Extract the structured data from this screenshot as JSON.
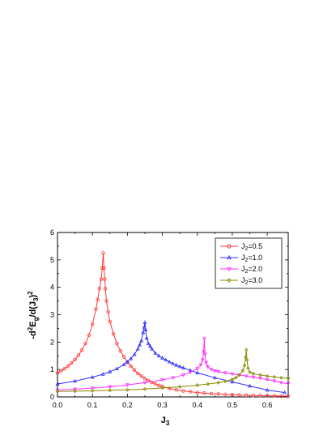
{
  "chart_data": {
    "type": "line",
    "xlabel": {
      "main": "J",
      "sub": "3"
    },
    "ylabel": {
      "p1": "-d",
      "sup1": "2",
      "p2": "E",
      "sub1": "g",
      "p3": "/d(J",
      "sub2": "3",
      "p4": ")",
      "sup2": "2"
    },
    "xlim": [
      0.0,
      0.66
    ],
    "ylim": [
      0,
      6
    ],
    "x_ticks": [
      "0.0",
      "0.1",
      "0.2",
      "0.3",
      "0.4",
      "0.5",
      "0.6"
    ],
    "y_ticks": [
      "0",
      "1",
      "2",
      "3",
      "4",
      "5",
      "6"
    ],
    "grid": false,
    "legend_position": "top-right",
    "series": [
      {
        "name": "J2=0.5",
        "label_main": "J",
        "label_sub": "2",
        "label_rest": "=0.5",
        "color": "#ff3b3b",
        "marker": "circle",
        "x": [
          0.0,
          0.01,
          0.02,
          0.03,
          0.04,
          0.05,
          0.06,
          0.07,
          0.08,
          0.09,
          0.1,
          0.11,
          0.115,
          0.12,
          0.125,
          0.128,
          0.131,
          0.133,
          0.135,
          0.137,
          0.14,
          0.145,
          0.15,
          0.16,
          0.17,
          0.18,
          0.19,
          0.2,
          0.21,
          0.22,
          0.23,
          0.24,
          0.25,
          0.26,
          0.27,
          0.28,
          0.29,
          0.3,
          0.32,
          0.34,
          0.36,
          0.38,
          0.4,
          0.42,
          0.44,
          0.46,
          0.48,
          0.5,
          0.52,
          0.54,
          0.56,
          0.58,
          0.6,
          0.62,
          0.64,
          0.66
        ],
        "y": [
          0.87,
          0.95,
          1.03,
          1.12,
          1.23,
          1.36,
          1.52,
          1.71,
          1.95,
          2.25,
          2.65,
          3.2,
          3.55,
          3.95,
          4.3,
          4.7,
          5.25,
          4.7,
          4.3,
          3.95,
          3.5,
          3.1,
          2.75,
          2.3,
          1.95,
          1.68,
          1.46,
          1.27,
          1.12,
          0.98,
          0.86,
          0.76,
          0.67,
          0.6,
          0.53,
          0.47,
          0.42,
          0.38,
          0.31,
          0.26,
          0.22,
          0.19,
          0.16,
          0.14,
          0.12,
          0.11,
          0.09,
          0.08,
          0.07,
          0.06,
          0.05,
          0.05,
          0.04,
          0.04,
          0.03,
          0.03
        ]
      },
      {
        "name": "J2=1.0",
        "label_main": "J",
        "label_sub": "2",
        "label_rest": "=1.0",
        "color": "#3030ff",
        "marker": "triangle-up",
        "x": [
          0.0,
          0.05,
          0.1,
          0.13,
          0.15,
          0.17,
          0.19,
          0.2,
          0.21,
          0.22,
          0.23,
          0.235,
          0.24,
          0.245,
          0.248,
          0.25,
          0.252,
          0.255,
          0.26,
          0.265,
          0.27,
          0.28,
          0.29,
          0.3,
          0.31,
          0.32,
          0.33,
          0.34,
          0.35,
          0.36,
          0.38,
          0.4,
          0.45,
          0.5,
          0.55,
          0.6,
          0.65
        ],
        "y": [
          0.47,
          0.58,
          0.72,
          0.83,
          0.92,
          1.03,
          1.18,
          1.28,
          1.4,
          1.55,
          1.75,
          1.9,
          2.05,
          2.35,
          2.55,
          2.72,
          2.45,
          2.15,
          1.95,
          1.85,
          1.75,
          1.6,
          1.5,
          1.42,
          1.35,
          1.28,
          1.22,
          1.16,
          1.11,
          1.06,
          0.97,
          0.88,
          0.7,
          0.55,
          0.4,
          0.25,
          0.16
        ]
      },
      {
        "name": "J2=2.0",
        "label_main": "J",
        "label_sub": "2",
        "label_rest": "=2.0",
        "color": "#ff30ff",
        "marker": "triangle-down",
        "x": [
          0.0,
          0.05,
          0.1,
          0.15,
          0.2,
          0.25,
          0.3,
          0.33,
          0.36,
          0.38,
          0.4,
          0.41,
          0.415,
          0.418,
          0.42,
          0.422,
          0.425,
          0.43,
          0.44,
          0.45,
          0.46,
          0.48,
          0.5,
          0.52,
          0.54,
          0.56,
          0.58,
          0.6,
          0.62,
          0.64,
          0.66
        ],
        "y": [
          0.25,
          0.28,
          0.32,
          0.37,
          0.44,
          0.52,
          0.62,
          0.7,
          0.8,
          0.9,
          1.03,
          1.17,
          1.35,
          1.65,
          2.12,
          1.55,
          1.25,
          1.1,
          1.0,
          0.95,
          0.92,
          0.88,
          0.84,
          0.8,
          0.76,
          0.72,
          0.68,
          0.63,
          0.58,
          0.52,
          0.48
        ]
      },
      {
        "name": "J2=3.0",
        "label_main": "J",
        "label_sub": "2",
        "label_rest": "=3.0",
        "color": "#8a8a00",
        "marker": "diamond",
        "x": [
          0.0,
          0.05,
          0.1,
          0.15,
          0.2,
          0.25,
          0.3,
          0.35,
          0.4,
          0.43,
          0.46,
          0.48,
          0.5,
          0.51,
          0.52,
          0.53,
          0.535,
          0.538,
          0.54,
          0.542,
          0.545,
          0.55,
          0.56,
          0.58,
          0.6,
          0.62,
          0.64,
          0.66
        ],
        "y": [
          0.2,
          0.21,
          0.22,
          0.24,
          0.26,
          0.29,
          0.33,
          0.37,
          0.43,
          0.47,
          0.52,
          0.57,
          0.64,
          0.7,
          0.8,
          0.96,
          1.15,
          1.45,
          1.72,
          1.35,
          1.05,
          0.9,
          0.85,
          0.8,
          0.76,
          0.73,
          0.7,
          0.68
        ]
      }
    ]
  }
}
